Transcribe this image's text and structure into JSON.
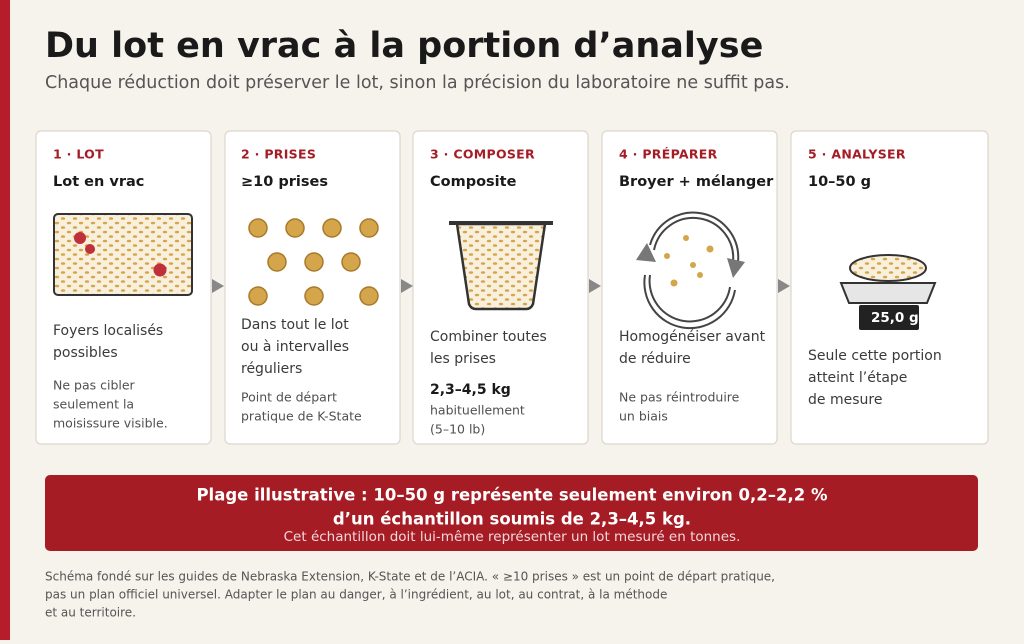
{
  "header": {
    "title": "Du lot en vrac à la portion d’analyse",
    "subtitle": "Chaque réduction doit préserver le lot, sinon la précision du laboratoire ne suffit pas."
  },
  "steps": [
    {
      "label": "1 · LOT",
      "heading": "Lot en vrac",
      "text": [
        "Foyers localisés",
        "possibles"
      ],
      "note": [
        "Ne pas cibler",
        "seulement la",
        "moisissure visible."
      ]
    },
    {
      "label": "2 · PRISES",
      "heading": "≥10 prises",
      "text": [
        "Dans tout le lot",
        "ou à intervalles",
        "réguliers"
      ],
      "note": [
        "Point de départ",
        "pratique de K-State"
      ]
    },
    {
      "label": "3 · COMPOSER",
      "heading": "Composite",
      "text": [
        "Combiner toutes",
        "les prises"
      ],
      "amount": "2,3–4,5 kg",
      "note": [
        "habituellement",
        "(5–10 lb)"
      ]
    },
    {
      "label": "4 · PRÉPARER",
      "heading": "Broyer + mélanger",
      "text": [
        "Homogénéiser avant",
        "de réduire"
      ],
      "note": [
        "Ne pas réintroduire",
        "un biais"
      ]
    },
    {
      "label": "5 · ANALYSER",
      "heading": "10–50 g",
      "scale": "25,0 g",
      "text": [
        "Seule cette portion",
        "atteint l’étape",
        "de mesure"
      ]
    }
  ],
  "banner": {
    "lines": [
      "Plage illustrative : 10–50 g représente seulement environ 0,2–2,2 %",
      "d’un échantillon soumis de 2,3–4,5 kg."
    ],
    "sub": "Cet échantillon doit lui-même représenter un lot mesuré en tonnes."
  },
  "footer": [
    "Schéma fondé sur les guides de Nebraska Extension, K-State et de l’ACIA. « ≥10 prises » est un point de départ pratique,",
    "pas un plan officiel universel. Adapter le plan au danger, à l’ingrédient, au lot, au contrat, à la méthode",
    "et au territoire."
  ]
}
